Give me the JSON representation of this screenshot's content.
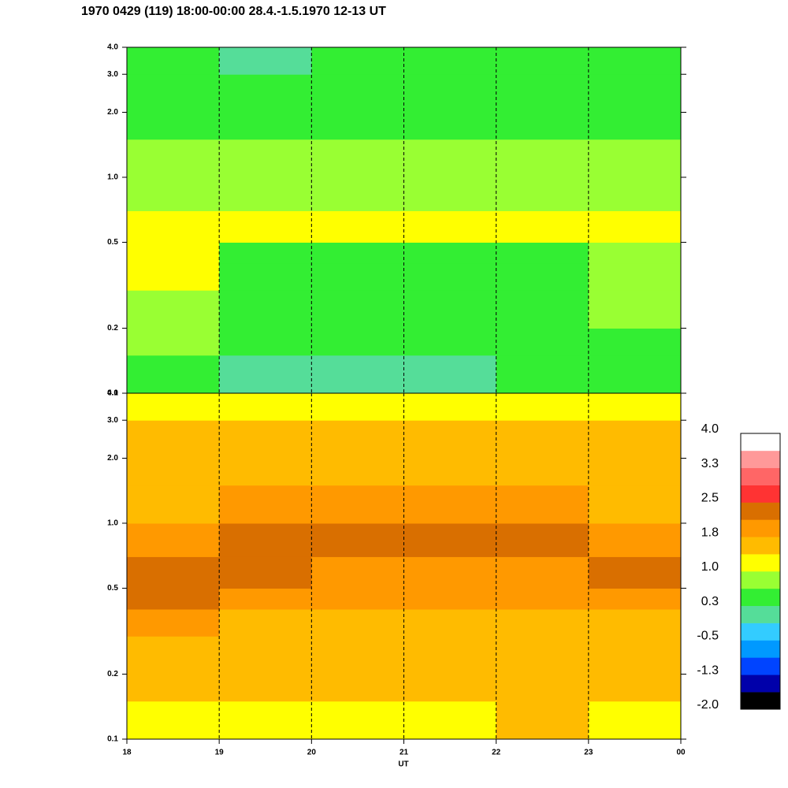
{
  "chart_data": {
    "type": "heatmap",
    "title": "1970 0429 (119) 18:00-00:00 28.4.-1.5.1970  12-13 UT",
    "xlabel": "UT",
    "xlim": [
      18,
      24
    ],
    "xticks": [
      18,
      19,
      20,
      21,
      22,
      23,
      {
        "value": 24,
        "label": "00"
      }
    ],
    "x_edges": [
      18,
      19,
      20,
      21,
      22,
      23,
      24
    ],
    "ylim": [
      0.1,
      4.0
    ],
    "log_y": true,
    "yticks": [
      0.1,
      0.2,
      0.5,
      {
        "value": 1.0,
        "label": "1.0"
      },
      {
        "value": 2.0,
        "label": "2.0"
      },
      {
        "value": 3.0,
        "label": "3.0"
      },
      {
        "value": 4.0,
        "label": "4.0"
      }
    ],
    "y_edges": [
      0.1,
      0.15,
      0.2,
      0.3,
      0.4,
      0.5,
      0.7,
      1.0,
      1.5,
      2.0,
      3.0,
      4.0
    ],
    "grid": true,
    "panels": [
      {
        "values": [
          [
            0.6,
            0.1,
            0.1,
            0.1,
            0.3,
            0.4
          ],
          [
            0.7,
            0.4,
            0.4,
            0.4,
            0.4,
            0.5
          ],
          [
            0.9,
            0.4,
            0.4,
            0.5,
            0.6,
            0.7
          ],
          [
            1.0,
            0.4,
            0.3,
            0.4,
            0.5,
            0.7
          ],
          [
            1.0,
            0.6,
            0.3,
            0.3,
            0.5,
            0.8
          ],
          [
            1.1,
            1.1,
            1.2,
            1.0,
            1.0,
            1.1
          ],
          [
            0.9,
            0.9,
            0.9,
            0.8,
            0.9,
            0.9
          ],
          [
            0.7,
            0.7,
            0.7,
            0.7,
            0.7,
            0.7
          ],
          [
            0.5,
            0.5,
            0.5,
            0.5,
            0.5,
            0.5
          ],
          [
            0.4,
            0.4,
            0.4,
            0.4,
            0.4,
            0.4
          ],
          [
            0.3,
            0.2,
            0.3,
            0.3,
            0.3,
            0.3
          ]
        ]
      },
      {
        "values": [
          [
            1.2,
            1.3,
            1.3,
            1.3,
            1.4,
            1.3
          ],
          [
            1.4,
            1.5,
            1.5,
            1.4,
            1.5,
            1.5
          ],
          [
            1.6,
            1.6,
            1.5,
            1.5,
            1.6,
            1.6
          ],
          [
            1.8,
            1.7,
            1.6,
            1.6,
            1.7,
            1.7
          ],
          [
            2.2,
            1.9,
            1.8,
            1.8,
            1.8,
            1.9
          ],
          [
            2.3,
            2.2,
            2.0,
            2.0,
            2.1,
            2.3
          ],
          [
            1.9,
            2.3,
            2.4,
            2.3,
            2.3,
            2.1
          ],
          [
            1.7,
            1.8,
            2.0,
            1.9,
            1.8,
            1.7
          ],
          [
            1.6,
            1.6,
            1.6,
            1.6,
            1.6,
            1.6
          ],
          [
            1.5,
            1.5,
            1.5,
            1.5,
            1.5,
            1.5
          ],
          [
            1.2,
            1.1,
            1.2,
            1.2,
            1.2,
            1.1
          ]
        ]
      }
    ],
    "colorbar": {
      "lim": [
        -2.0,
        4.0
      ],
      "colors": [
        "#000000",
        "#0000aa",
        "#0044ff",
        "#0099ff",
        "#33ccff",
        "#55dd99",
        "#33ee33",
        "#99ff33",
        "#ffff00",
        "#ffbb00",
        "#ff9900",
        "#d96f00",
        "#ff3333",
        "#ff6666",
        "#ff9999",
        "#ffffff"
      ],
      "ticks": [
        {
          "value": -2.0,
          "label": "-2.0"
        },
        {
          "value": -1.25,
          "label": "-1.3"
        },
        {
          "value": -0.5,
          "label": "-0.5"
        },
        {
          "value": 0.25,
          "label": "0.3"
        },
        {
          "value": 1.0,
          "label": "1.0"
        },
        {
          "value": 1.75,
          "label": "1.8"
        },
        {
          "value": 2.5,
          "label": "2.5"
        },
        {
          "value": 3.25,
          "label": "3.3"
        },
        {
          "value": 4.0,
          "label": "4.0"
        }
      ]
    }
  }
}
